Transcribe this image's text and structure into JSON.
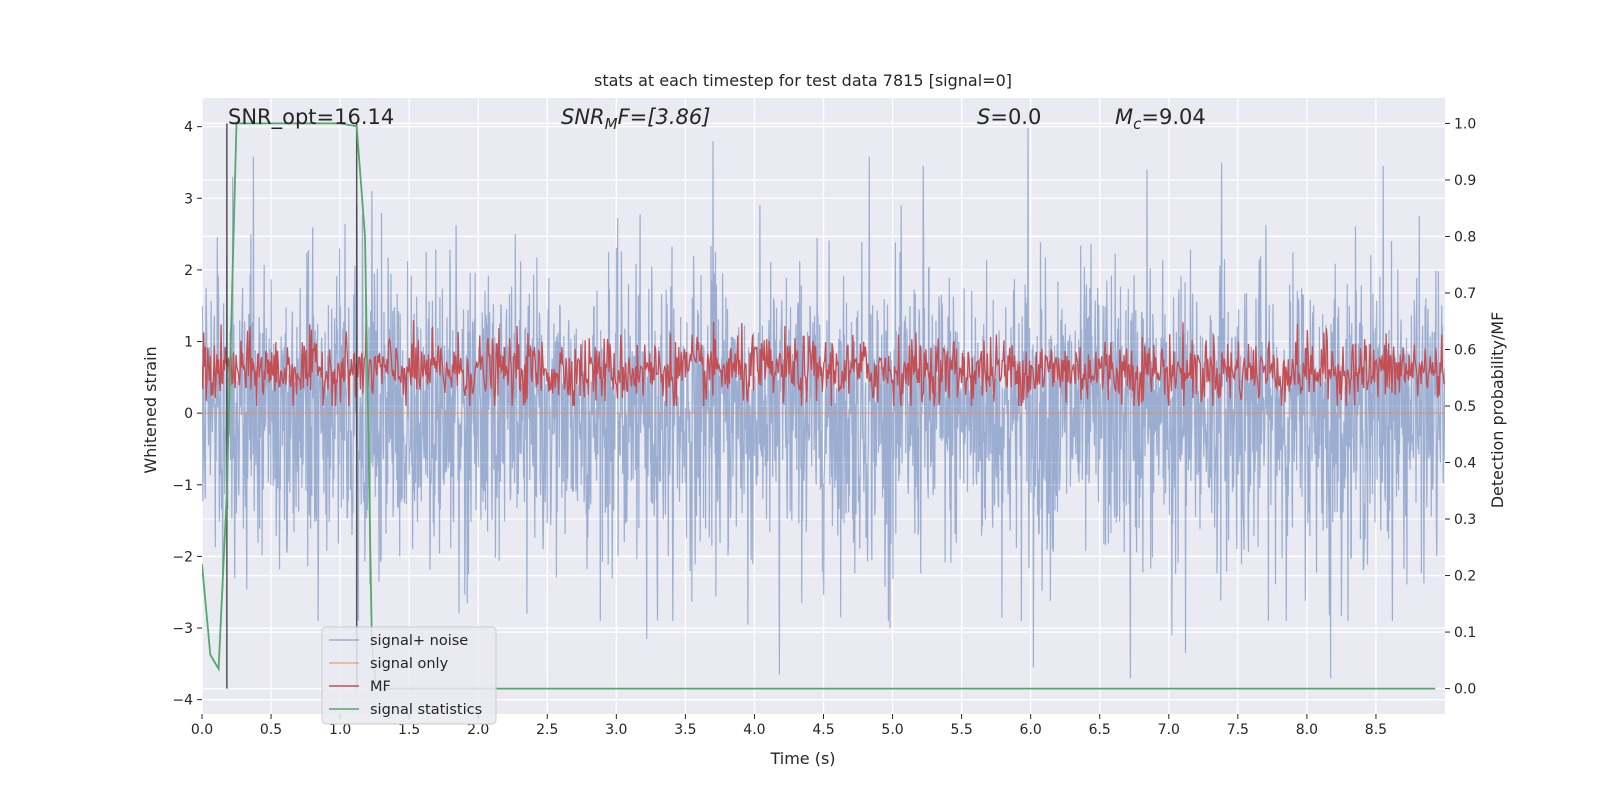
{
  "chart_data": {
    "type": "line",
    "title": "stats at each timestep for test data 7815 [signal=0]",
    "xlabel": "Time (s)",
    "ylabel": "Whitened strain",
    "y2label": "Detection probability/MF",
    "xlim": [
      0.0,
      9.0
    ],
    "ylim": [
      -4.2,
      4.4
    ],
    "y2lim": [
      -0.045,
      1.045
    ],
    "xticks": [
      "0.0",
      "0.5",
      "1.0",
      "1.5",
      "2.0",
      "2.5",
      "3.0",
      "3.5",
      "4.0",
      "4.5",
      "5.0",
      "5.5",
      "6.0",
      "6.5",
      "7.0",
      "7.5",
      "8.0",
      "8.5"
    ],
    "yticks": [
      "4",
      "3",
      "2",
      "1",
      "0",
      "−1",
      "−2",
      "−3",
      "−4"
    ],
    "y2ticks": [
      "1.0",
      "0.9",
      "0.8",
      "0.7",
      "0.6",
      "0.5",
      "0.4",
      "0.3",
      "0.2",
      "0.1",
      "0.0"
    ],
    "grid": true,
    "legend_position": "lower-left",
    "annotations": {
      "snr_opt": "SNR_opt=16.14",
      "snr_mf_prefix": "SNR",
      "snr_mf_sub": "M",
      "snr_mf_suffix": "F=[3.86]",
      "s_name": "S",
      "s_value": "=0.0",
      "mc_name": "M",
      "mc_sub": "c",
      "mc_value": "=9.04"
    },
    "vlines": [
      0.18,
      1.12
    ],
    "series": [
      {
        "name": "signal+ noise",
        "color": "#4c72b0",
        "axis": "left",
        "kind": "noise",
        "sigma": 1.0,
        "extremes": [
          [
            0.22,
            3.3
          ],
          [
            0.37,
            3.58
          ],
          [
            1.23,
            3.1
          ],
          [
            1.43,
            -2.0
          ],
          [
            2.35,
            -2.8
          ],
          [
            3.22,
            -3.15
          ],
          [
            3.7,
            3.8
          ],
          [
            3.95,
            -2.95
          ],
          [
            4.18,
            -3.65
          ],
          [
            4.83,
            3.58
          ],
          [
            4.98,
            -3.0
          ],
          [
            5.22,
            3.45
          ],
          [
            5.98,
            3.98
          ],
          [
            6.02,
            -3.55
          ],
          [
            6.72,
            -3.7
          ],
          [
            6.84,
            3.4
          ],
          [
            7.02,
            -3.1
          ],
          [
            7.38,
            3.5
          ],
          [
            7.12,
            -3.35
          ],
          [
            8.17,
            -3.7
          ],
          [
            8.55,
            3.45
          ]
        ]
      },
      {
        "name": "signal only",
        "color": "#dd8452",
        "axis": "left",
        "kind": "flat",
        "value": 0.0
      },
      {
        "name": "MF",
        "color": "#c44e52",
        "axis": "right",
        "kind": "mf",
        "base": 0.5,
        "mean": 0.063,
        "spread": 0.03
      },
      {
        "name": "signal statistics",
        "color": "#55a868",
        "axis": "right",
        "kind": "points",
        "x": [
          0.0,
          0.06,
          0.12,
          0.18,
          0.25,
          1.0,
          1.12,
          1.18,
          1.23,
          1.26,
          1.3,
          8.93
        ],
        "y": [
          0.22,
          0.06,
          0.035,
          0.35,
          1.0,
          1.0,
          0.995,
          0.8,
          0.08,
          0.0,
          0.0,
          0.0
        ]
      }
    ]
  }
}
